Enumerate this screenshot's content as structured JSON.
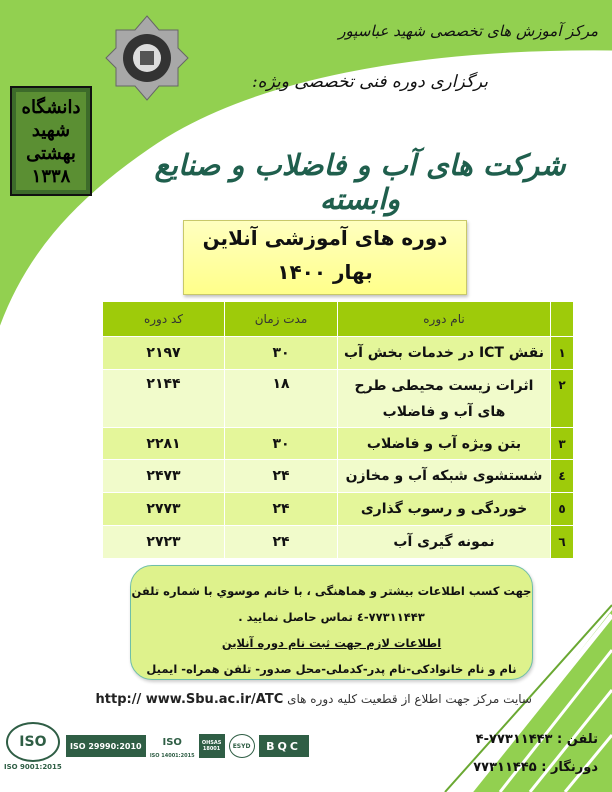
{
  "header": {
    "center_name": "مرکز آموزش های تخصصی شهید عباسپور",
    "subtitle": "برگزاری دوره فنی تخصصی ویژه:",
    "main_title": "شرکت های آب و فاضلاب و صنایع وابسته",
    "university_logo_text": "دانشگاه شهید بهشتی ۱۳۳۸"
  },
  "banner": {
    "line1": "دوره های آموزشی آنلاین",
    "line2": "بهار ۱۴۰۰"
  },
  "table": {
    "headers": {
      "name": "نام دوره",
      "duration": "مدت زمان",
      "code": "کد دوره"
    },
    "rows": [
      {
        "index": "۱",
        "name": "نقش ICT در خدمات بخش آب",
        "duration": "۳۰",
        "code": "۲۱۹۷"
      },
      {
        "index": "۲",
        "name": "اثرات زیست محیطی طرح های آب و فاضلاب",
        "duration": "۱۸",
        "code": "۲۱۴۴"
      },
      {
        "index": "۳",
        "name": "بتن ویژه آب و فاضلاب",
        "duration": "۳۰",
        "code": "۲۲۸۱"
      },
      {
        "index": "٤",
        "name": "شستشوی شبکه آب و مخازن",
        "duration": "۲۴",
        "code": "۲۴۷۳"
      },
      {
        "index": "٥",
        "name": "خوردگی و رسوب گذاری",
        "duration": "۲۴",
        "code": "۲۷۷۳"
      },
      {
        "index": "٦",
        "name": "نمونه گیری آب",
        "duration": "۲۴",
        "code": "۲۷۲۳"
      }
    ]
  },
  "info": {
    "line1": "جهت کسب اطلاعات بیشتر و هماهنگی ، با خانم موسوي  با شماره تلفن",
    "line2": "۷۷۳۱۱۴۴۳-٤ تماس حاصل نمایید .",
    "line3": "اطلاعات لازم جهت ثبت نام دوره آنلاین",
    "line4": "نام و نام خانوادکی-نام پدر-کدملی-محل صدور- تلفن همراه- ایمیل"
  },
  "website": {
    "text": "سایت مرکز جهت اطلاع از قطعیت کلیه دوره های",
    "url": "http:// www.Sbu.ac.ir/ATC"
  },
  "contact": {
    "phone_label": "تلفن :",
    "phone": "۷۷۳۱۱۴۴۳-۴",
    "fax_label": "دورنگار :",
    "fax": "۷۷۳۱۱۴۴۵"
  },
  "certifications": [
    "ISO 9001:2015",
    "ISO 29990:2010",
    "ISO 14001:2015",
    "OHSAS 18001",
    "ESYD",
    "BQC"
  ],
  "colors": {
    "green": "#92d050",
    "table_header": "#9ecb0a",
    "title": "#1f5f4d",
    "banner_yellow": "#ffff99"
  }
}
